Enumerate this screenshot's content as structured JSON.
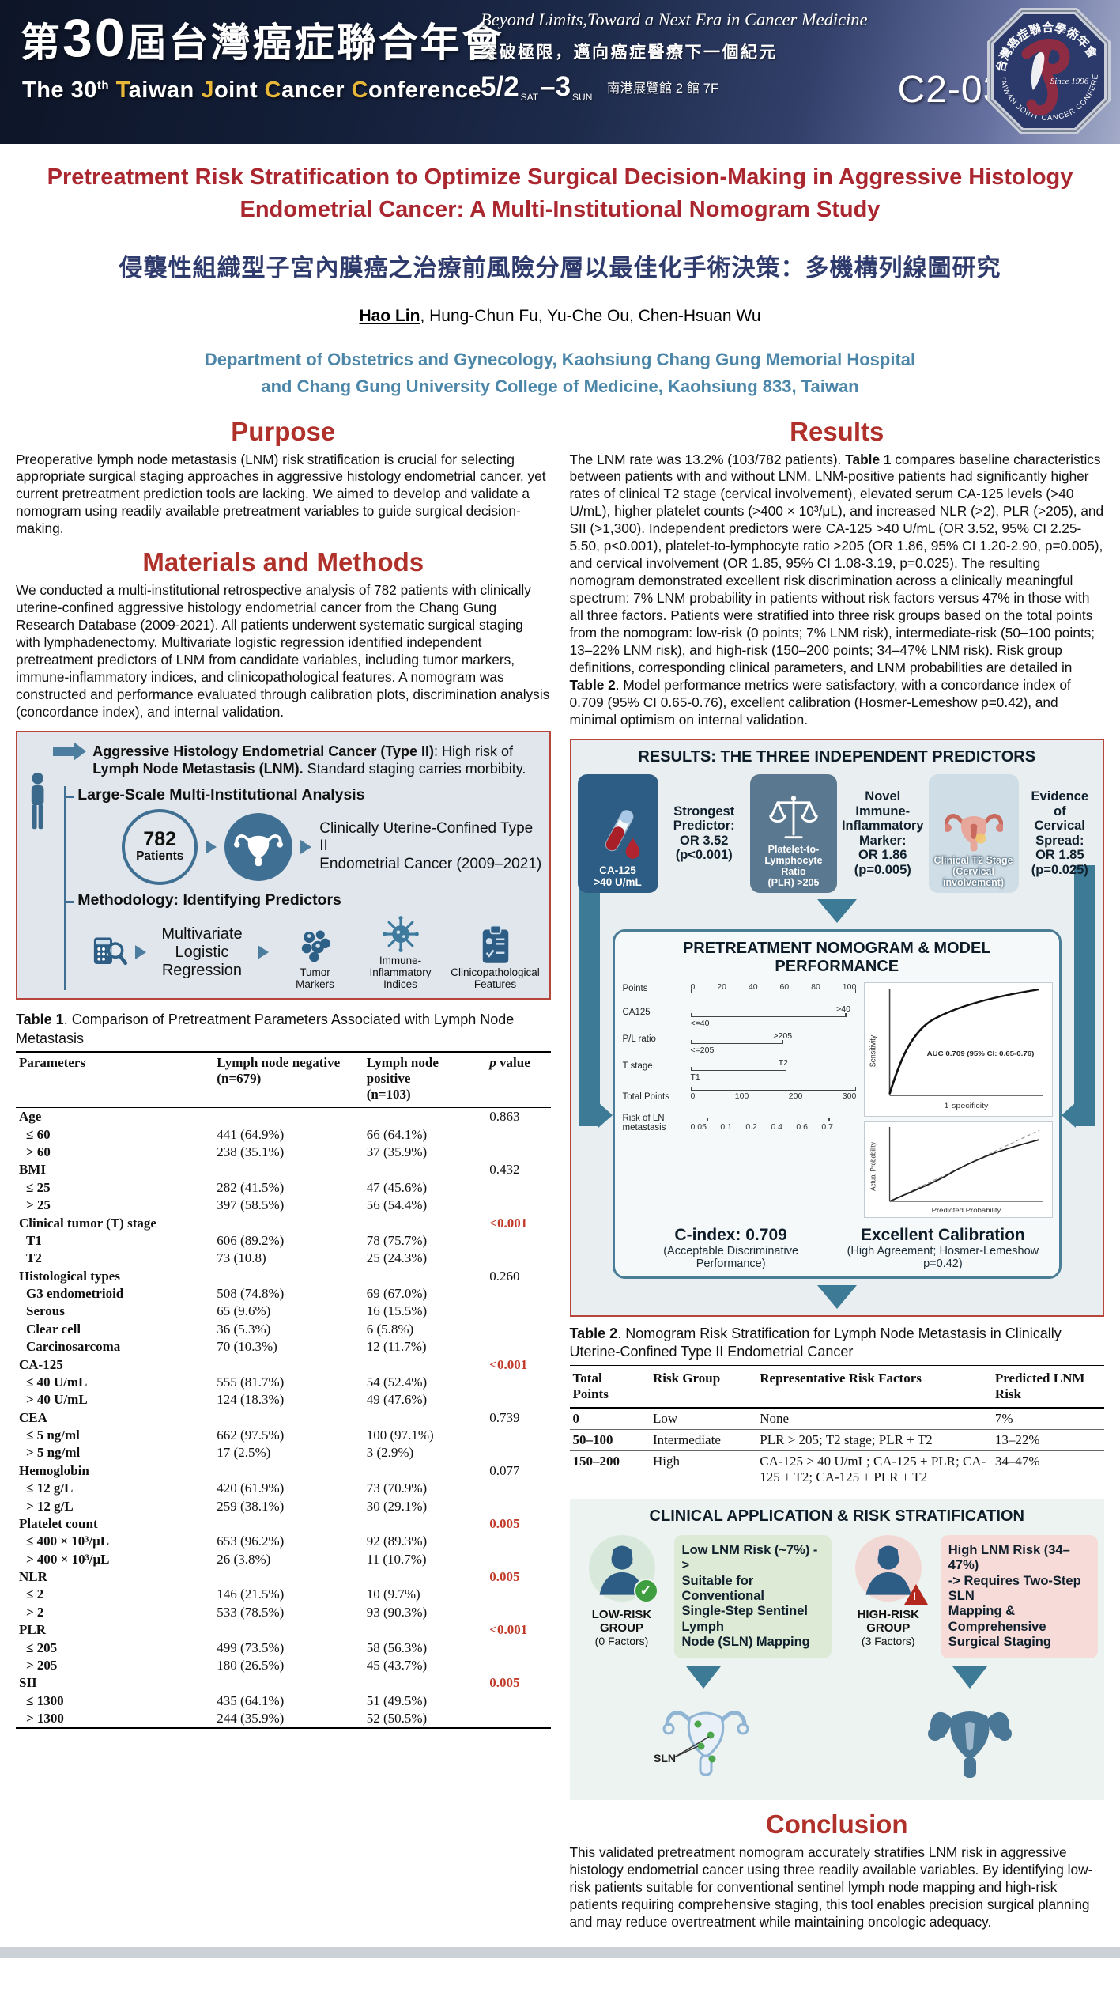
{
  "header": {
    "title_zh_parts": [
      {
        "t": "第",
        "c": "zh-n"
      },
      {
        "t": "30",
        "c": "zh-big"
      },
      {
        "t": "屆台灣癌症聯合年會",
        "c": "zh-n"
      }
    ],
    "conference_en_parts": [
      {
        "t": "The 30"
      },
      {
        "t": "th",
        "c": "sup"
      },
      {
        "t": " "
      },
      {
        "t": "T",
        "c": "gold"
      },
      {
        "t": "aiwan "
      },
      {
        "t": "J",
        "c": "gold"
      },
      {
        "t": "oint "
      },
      {
        "t": "C",
        "c": "gold"
      },
      {
        "t": "ancer "
      },
      {
        "t": "C",
        "c": "gold"
      },
      {
        "t": "onference"
      }
    ],
    "slogan_en": "Beyond Limits,Toward a Next Era in Cancer Medicine",
    "slogan_zh": "突破極限，邁向癌症醫療下一個紀元",
    "date_parts": [
      {
        "t": "5/2",
        "c": "d-big"
      },
      {
        "t": "SAT",
        "c": "d-sm"
      },
      {
        "t": "–3",
        "c": "d-big"
      },
      {
        "t": "SUN",
        "c": "d-sm"
      }
    ],
    "venue": "南港展覽館 2 館 7F",
    "poster_id": "C2-030",
    "logo": {
      "top_text": "台灣癌症聯合學術年會",
      "bottom_text": "TAIWAN JOINT CANCER CONFERENCE",
      "center_text": "Since 1996"
    }
  },
  "poster": {
    "title_en": "Pretreatment Risk Stratification to Optimize Surgical Decision-Making in Aggressive Histology Endometrial Cancer: A Multi-Institutional Nomogram Study",
    "title_zh": "侵襲性組織型子宮內膜癌之治療前風險分層以最佳化手術決策：多機構列線圖研究",
    "author_parts": [
      {
        "t": "Hao Lin",
        "b": true,
        "u": true
      },
      {
        "t": ", Hung-Chun Fu, Yu-Che Ou, Chen-Hsuan Wu"
      }
    ],
    "affiliation": "Department of Obstetrics and Gynecology, Kaohsiung Chang Gung Memorial Hospital and Chang Gung University College of Medicine, Kaohsiung 833, Taiwan"
  },
  "purpose": {
    "heading": "Purpose",
    "text": "Preoperative lymph node metastasis (LNM) risk stratification is crucial for selecting appropriate surgical staging approaches in aggressive histology endometrial cancer, yet current pretreatment prediction tools are lacking. We aimed to develop and validate a nomogram using readily available pretreatment variables to guide surgical decision-making."
  },
  "methods": {
    "heading": "Materials and Methods",
    "text": "We conducted a multi-institutional retrospective analysis of 782 patients with clinically uterine-confined aggressive histology endometrial cancer from the Chang Gung Research Database (2009-2021). All patients underwent systematic surgical staging with lymphadenectomy. Multivariate logistic regression identified independent pretreatment predictors of LNM from candidate variables, including tumor markers, immune-inflammatory indices, and clinicopathological features. A nomogram was constructed and performance evaluated through calibration plots, discrimination analysis (concordance index), and internal validation."
  },
  "results": {
    "heading": "Results",
    "text_parts": [
      {
        "t": "The LNM rate was 13.2% (103/782 patients). "
      },
      {
        "t": "Table 1",
        "b": true
      },
      {
        "t": " compares baseline characteristics between patients with and without LNM. LNM-positive patients had significantly higher rates of clinical T2 stage (cervical involvement), elevated serum CA-125 levels (>40 U/mL), higher platelet counts (>400 × 10³/μL), and increased NLR (>2), PLR (>205), and SII (>1,300). Independent predictors were CA-125 >40 U/mL (OR 3.52, 95% CI 2.25-5.50, p<0.001), platelet-to-lymphocyte ratio >205 (OR 1.86, 95% CI 1.20-2.90, p=0.005), and cervical involvement (OR 1.85, 95% CI 1.08-3.19, p=0.025). The resulting nomogram demonstrated excellent risk discrimination across a clinically meaningful spectrum: 7% LNM probability in patients without risk factors versus 47% in those with all three factors. Patients were stratified into three risk groups based on the total points from the nomogram: low-risk (0 points; 7% LNM risk), intermediate-risk (50–100 points; 13–22% LNM risk), and high-risk (150–200 points; 34–47% LNM risk). Risk group definitions, corresponding clinical parameters, and LNM probabilities are detailed in "
      },
      {
        "t": "Table 2",
        "b": true
      },
      {
        "t": ". Model performance metrics were satisfactory, with a concordance index of 0.709 (95% CI 0.65-0.76), excellent calibration (Hosmer-Lemeshow p=0.42), and minimal optimism on internal validation."
      }
    ]
  },
  "figure1": {
    "statement_parts": [
      {
        "t": "Aggressive Histology Endometrial Cancer (Type II)",
        "b": true
      },
      {
        "t": ": High risk of "
      },
      {
        "t": "Lymph Node Metastasis (LNM).",
        "b": true
      },
      {
        "t": " Standard staging carries morbibity."
      }
    ],
    "analysis_label": "Large-Scale Multi-Institutional Analysis",
    "patients_count": "782",
    "patients_label": "Patients",
    "cohort_text": "Clinically Uterine-Confined Type II\nEndometrial Cancer (2009–2021)",
    "methodology_label": "Methodology: Identifying Predictors",
    "regression_text": "Multivariate\nLogistic Regression",
    "predictors": [
      "Tumor\nMarkers",
      "Immune-\nInflammatory\nIndices",
      "Clinicopathological\nFeatures"
    ]
  },
  "table1": {
    "caption_parts": [
      {
        "t": "Table 1",
        "b": true
      },
      {
        "t": ". Comparison of Pretreatment Parameters Associated with Lymph Node Metastasis"
      }
    ],
    "headers": [
      "Parameters",
      "Lymph node negative\n(n=679)",
      "Lymph node\npositive\n(n=103)",
      "p value"
    ],
    "rows": [
      {
        "label": "Age",
        "p": "0.863",
        "cat": true
      },
      {
        "label": "≤ 60",
        "neg": "441 (64.9%)",
        "pos": "66 (64.1%)"
      },
      {
        "label": "> 60",
        "neg": "238 (35.1%)",
        "pos": "37 (35.9%)"
      },
      {
        "label": "BMI",
        "p": "0.432",
        "cat": true
      },
      {
        "label": "≤ 25",
        "neg": "282 (41.5%)",
        "pos": "47 (45.6%)"
      },
      {
        "label": "> 25",
        "neg": "397 (58.5%)",
        "pos": "56 (54.4%)"
      },
      {
        "label": "Clinical tumor (T) stage",
        "p": "<0.001",
        "cat": true,
        "red": true
      },
      {
        "label": "T1",
        "neg": "606 (89.2%)",
        "pos": "78 (75.7%)"
      },
      {
        "label": "T2",
        "neg": "73 (10.8)",
        "pos": "25 (24.3%)"
      },
      {
        "label": "Histological types",
        "p": "0.260",
        "cat": true
      },
      {
        "label": "G3 endometrioid",
        "neg": "508 (74.8%)",
        "pos": "69 (67.0%)"
      },
      {
        "label": "Serous",
        "neg": "65 (9.6%)",
        "pos": "16 (15.5%)"
      },
      {
        "label": "Clear cell",
        "neg": "36 (5.3%)",
        "pos": "6 (5.8%)"
      },
      {
        "label": "Carcinosarcoma",
        "neg": "70 (10.3%)",
        "pos": "12 (11.7%)"
      },
      {
        "label": "CA-125",
        "p": "<0.001",
        "cat": true,
        "red": true
      },
      {
        "label": "≤ 40 U/mL",
        "neg": "555 (81.7%)",
        "pos": "54 (52.4%)"
      },
      {
        "label": "> 40 U/mL",
        "neg": "124 (18.3%)",
        "pos": "49 (47.6%)"
      },
      {
        "label": "CEA",
        "p": "0.739",
        "cat": true
      },
      {
        "label": "≤ 5 ng/ml",
        "neg": "662 (97.5%)",
        "pos": "100 (97.1%)"
      },
      {
        "label": "> 5 ng/ml",
        "neg": "17 (2.5%)",
        "pos": "3 (2.9%)"
      },
      {
        "label": "Hemoglobin",
        "p": "0.077",
        "cat": true
      },
      {
        "label": "≤ 12 g/L",
        "neg": "420 (61.9%)",
        "pos": "73 (70.9%)"
      },
      {
        "label": "> 12 g/L",
        "neg": "259 (38.1%)",
        "pos": "30 (29.1%)"
      },
      {
        "label": "Platelet count",
        "p": "0.005",
        "cat": true,
        "red": true
      },
      {
        "label": "≤ 400 × 10³/μL",
        "neg": "653 (96.2%)",
        "pos": "92 (89.3%)"
      },
      {
        "label": "> 400 × 10³/μL",
        "neg": "26 (3.8%)",
        "pos": "11 (10.7%)"
      },
      {
        "label": "NLR",
        "p": "0.005",
        "cat": true,
        "red": true
      },
      {
        "label": "≤ 2",
        "neg": "146 (21.5%)",
        "pos": "10 (9.7%)"
      },
      {
        "label": "> 2",
        "neg": "533 (78.5%)",
        "pos": "93 (90.3%)"
      },
      {
        "label": "PLR",
        "p": "<0.001",
        "cat": true,
        "red": true
      },
      {
        "label": "≤ 205",
        "neg": "499 (73.5%)",
        "pos": "58 (56.3%)"
      },
      {
        "label": "> 205",
        "neg": "180 (26.5%)",
        "pos": "45 (43.7%)"
      },
      {
        "label": "SII",
        "p": "0.005",
        "cat": true,
        "red": true
      },
      {
        "label": "≤ 1300",
        "neg": "435 (64.1%)",
        "pos": "51 (49.5%)"
      },
      {
        "label": "> 1300",
        "neg": "244 (35.9%)",
        "pos": "52 (50.5%)"
      }
    ]
  },
  "figure2": {
    "title": "RESULTS: THE THREE INDEPENDENT PREDICTORS",
    "predictors": [
      {
        "card": "CA-125\n>40 U/mL",
        "label": "Strongest\nPredictor:\nOR 3.52\n(p<0.001)"
      },
      {
        "card": "Platelet-to-\nLymphocyte Ratio\n(PLR) >205",
        "label": "Novel Immune-\nInflammatory\nMarker:\nOR 1.86\n(p=0.005)"
      },
      {
        "card": "Clinical T2 Stage\n(Cervical involvement)",
        "label": "Evidence of\nCervical\nSpread:\nOR 1.85\n(p=0.025)"
      }
    ],
    "nomogram": {
      "title": "PRETREATMENT NOMOGRAM & MODEL PERFORMANCE",
      "points_label": "Points",
      "points_ticks": [
        "0",
        "20",
        "40",
        "60",
        "80",
        "100"
      ],
      "ca125_label": "CA125",
      "ca125_low": "<=40",
      "ca125_high": ">40",
      "plr_label": "P/L ratio",
      "plr_low": "<=205",
      "plr_high": ">205",
      "tstage_label": "T stage",
      "t1": "T1",
      "t2": "T2",
      "total_label": "Total Points",
      "total_ticks": [
        "0",
        "100",
        "200",
        "300"
      ],
      "risk_label": "Risk of LN metastasis",
      "risk_ticks": [
        "0.05",
        "0.1",
        "0.2",
        "0.4",
        "0.6",
        "0.7"
      ]
    },
    "roc": {
      "auc": "AUC 0.709 (95% CI: 0.65-0.76)",
      "ylabel": "Sensitivity",
      "xlabel": "1-specificity"
    },
    "calibration": {
      "ylabel": "Actual Probability",
      "xlabel": "Predicted Probability"
    },
    "cindex": "C-index: 0.709",
    "cindex_sub": "(Acceptable Discriminative Performance)",
    "calib_head": "Excellent Calibration",
    "calib_sub": "(High Agreement; Hosmer-Lemeshow p=0.42)"
  },
  "table2": {
    "caption_parts": [
      {
        "t": "Table 2",
        "b": true
      },
      {
        "t": ". Nomogram Risk Stratification for Lymph Node Metastasis in Clinically Uterine-Confined Type II Endometrial Cancer"
      }
    ],
    "headers": [
      "Total\nPoints",
      "Risk Group",
      "Representative Risk Factors",
      "Predicted LNM\nRisk"
    ],
    "rows": [
      {
        "points": "0",
        "group": "Low",
        "factors": "None",
        "risk": "7%"
      },
      {
        "points": "50–100",
        "group": "Intermediate",
        "factors": "PLR > 205; T2 stage; PLR + T2",
        "risk": "13–22%"
      },
      {
        "points": "150–200",
        "group": "High",
        "factors": "CA-125 > 40 U/mL; CA-125 + PLR; CA-125 + T2; CA-125 + PLR + T2",
        "risk": "34–47%"
      }
    ]
  },
  "figure3": {
    "title": "CLINICAL APPLICATION & RISK STRATIFICATION",
    "low": {
      "group": "LOW-RISK GROUP",
      "factors": "(0 Factors)",
      "box": "Low LNM Risk (~7%) ->\nSuitable for Conventional\nSingle-Step Sentinel Lymph\nNode (SLN) Mapping",
      "sln": "SLN"
    },
    "high": {
      "group": "HIGH-RISK GROUP",
      "factors": "(3 Factors)",
      "box": "High LNM Risk (34–47%)\n-> Requires Two-Step SLN\nMapping & Comprehensive\nSurgical Staging"
    }
  },
  "conclusion": {
    "heading": "Conclusion",
    "text": "This validated pretreatment nomogram accurately stratifies LNM risk in aggressive histology endometrial cancer using three readily available variables. By identifying low-risk patients suitable for conventional sentinel lymph node mapping and high-risk patients requiring comprehensive staging, this tool enables precision surgical planning and may reduce overtreatment while maintaining oncologic adequacy."
  }
}
